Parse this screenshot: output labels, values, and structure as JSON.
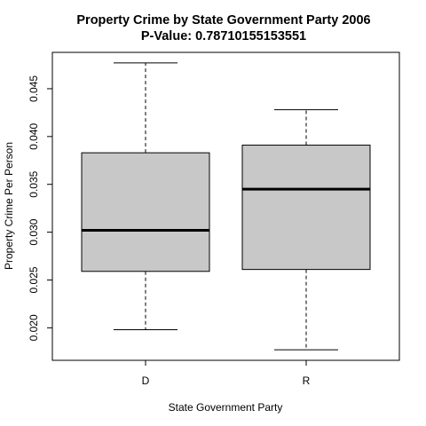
{
  "chart_data": {
    "type": "boxplot",
    "title": "Property Crime  by State Government Party  2006",
    "subtitle": "P-Value:  0.78710155153551",
    "xlabel": "State Government Party",
    "ylabel": "Property Crime  Per Person",
    "categories": [
      "D",
      "R"
    ],
    "boxes": [
      {
        "category": "D",
        "min": 0.0198,
        "q1": 0.0259,
        "median": 0.0302,
        "q3": 0.0383,
        "max": 0.0477
      },
      {
        "category": "R",
        "min": 0.0177,
        "q1": 0.0261,
        "median": 0.0345,
        "q3": 0.0391,
        "max": 0.0428
      }
    ],
    "yticks": [
      0.02,
      0.025,
      0.03,
      0.035,
      0.04,
      0.045
    ],
    "ytick_labels": [
      "0.020",
      "0.025",
      "0.030",
      "0.035",
      "0.040",
      "0.045"
    ],
    "ylim": [
      0.0166,
      0.0488
    ],
    "grid": false,
    "box_fill": "#c8c8c8"
  }
}
